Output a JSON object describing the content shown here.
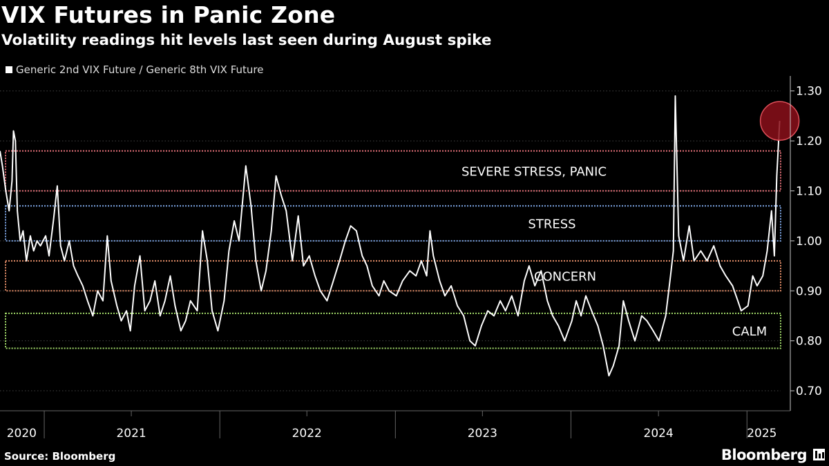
{
  "header": {
    "title": "VIX Futures in Panic Zone",
    "subtitle": "Volatility readings hit levels last seen during August spike",
    "legend_label": "Generic 2nd VIX Future / Generic 8th VIX Future"
  },
  "footer": {
    "source": "Source: Bloomberg",
    "brand": "Bloomberg"
  },
  "chart_data": {
    "type": "line",
    "ylim": [
      0.66,
      1.33
    ],
    "yticks": [
      0.7,
      0.8,
      0.9,
      1.0,
      1.1,
      1.2,
      1.3
    ],
    "ytick_labels": [
      "0.70",
      "0.80",
      "0.90",
      "1.00",
      "1.10",
      "1.20",
      "1.30"
    ],
    "x_start": "2020-10-01",
    "x_end": "2025-03-12",
    "year_labels": [
      {
        "label": "2020",
        "date": "2020-11-15"
      },
      {
        "label": "2021",
        "date": "2021-07-01"
      },
      {
        "label": "2022",
        "date": "2022-07-01"
      },
      {
        "label": "2023",
        "date": "2023-07-01"
      },
      {
        "label": "2024",
        "date": "2024-07-01"
      },
      {
        "label": "2025",
        "date": "2025-02-01"
      }
    ],
    "colors": {
      "line": "#ffffff",
      "grid": "#444444",
      "highlight": "#8b0f1a",
      "highlight_stroke": "#e0505a"
    },
    "zones": [
      {
        "label": "SEVERE STRESS, PANIC",
        "y0": 1.1,
        "y1": 1.18,
        "color": "#e8727a"
      },
      {
        "label": "STRESS",
        "y0": 1.0,
        "y1": 1.07,
        "color": "#7fa8e8"
      },
      {
        "label": "CONCERN",
        "y0": 0.9,
        "y1": 0.96,
        "color": "#e8906a"
      },
      {
        "label": "CALM",
        "y0": 0.785,
        "y1": 0.855,
        "color": "#a3dc6a"
      }
    ],
    "highlight_point": {
      "date": "2025-03-10",
      "y": 1.24
    },
    "series": [
      {
        "values": [
          [
            "2020-10-01",
            1.18
          ],
          [
            "2020-10-06",
            1.15
          ],
          [
            "2020-10-13",
            1.1
          ],
          [
            "2020-10-20",
            1.06
          ],
          [
            "2020-10-26",
            1.12
          ],
          [
            "2020-10-29",
            1.22
          ],
          [
            "2020-11-02",
            1.2
          ],
          [
            "2020-11-06",
            1.06
          ],
          [
            "2020-11-12",
            1.0
          ],
          [
            "2020-11-18",
            1.02
          ],
          [
            "2020-11-25",
            0.96
          ],
          [
            "2020-12-03",
            1.01
          ],
          [
            "2020-12-10",
            0.98
          ],
          [
            "2020-12-17",
            1.0
          ],
          [
            "2020-12-24",
            0.99
          ],
          [
            "2021-01-04",
            1.01
          ],
          [
            "2021-01-11",
            0.97
          ],
          [
            "2021-01-20",
            1.04
          ],
          [
            "2021-01-28",
            1.11
          ],
          [
            "2021-02-04",
            0.99
          ],
          [
            "2021-02-12",
            0.96
          ],
          [
            "2021-02-22",
            1.0
          ],
          [
            "2021-03-03",
            0.95
          ],
          [
            "2021-03-12",
            0.93
          ],
          [
            "2021-03-22",
            0.91
          ],
          [
            "2021-04-01",
            0.88
          ],
          [
            "2021-04-12",
            0.85
          ],
          [
            "2021-04-22",
            0.9
          ],
          [
            "2021-05-03",
            0.88
          ],
          [
            "2021-05-12",
            1.01
          ],
          [
            "2021-05-20",
            0.92
          ],
          [
            "2021-06-01",
            0.87
          ],
          [
            "2021-06-10",
            0.84
          ],
          [
            "2021-06-21",
            0.86
          ],
          [
            "2021-06-29",
            0.82
          ],
          [
            "2021-07-08",
            0.91
          ],
          [
            "2021-07-19",
            0.97
          ],
          [
            "2021-07-29",
            0.86
          ],
          [
            "2021-08-09",
            0.88
          ],
          [
            "2021-08-19",
            0.92
          ],
          [
            "2021-08-30",
            0.85
          ],
          [
            "2021-09-09",
            0.88
          ],
          [
            "2021-09-20",
            0.93
          ],
          [
            "2021-09-30",
            0.87
          ],
          [
            "2021-10-12",
            0.82
          ],
          [
            "2021-10-22",
            0.84
          ],
          [
            "2021-11-01",
            0.88
          ],
          [
            "2021-11-15",
            0.86
          ],
          [
            "2021-11-26",
            1.02
          ],
          [
            "2021-12-06",
            0.96
          ],
          [
            "2021-12-16",
            0.86
          ],
          [
            "2021-12-28",
            0.82
          ],
          [
            "2022-01-10",
            0.88
          ],
          [
            "2022-01-20",
            0.98
          ],
          [
            "2022-01-31",
            1.04
          ],
          [
            "2022-02-10",
            1.0
          ],
          [
            "2022-02-24",
            1.15
          ],
          [
            "2022-03-07",
            1.07
          ],
          [
            "2022-03-17",
            0.96
          ],
          [
            "2022-03-28",
            0.9
          ],
          [
            "2022-04-07",
            0.94
          ],
          [
            "2022-04-18",
            1.02
          ],
          [
            "2022-04-28",
            1.13
          ],
          [
            "2022-05-09",
            1.09
          ],
          [
            "2022-05-19",
            1.06
          ],
          [
            "2022-06-01",
            0.96
          ],
          [
            "2022-06-13",
            1.05
          ],
          [
            "2022-06-24",
            0.95
          ],
          [
            "2022-07-06",
            0.97
          ],
          [
            "2022-07-18",
            0.93
          ],
          [
            "2022-07-29",
            0.9
          ],
          [
            "2022-08-12",
            0.88
          ],
          [
            "2022-08-25",
            0.92
          ],
          [
            "2022-09-07",
            0.96
          ],
          [
            "2022-09-19",
            1.0
          ],
          [
            "2022-09-30",
            1.03
          ],
          [
            "2022-10-12",
            1.02
          ],
          [
            "2022-10-24",
            0.97
          ],
          [
            "2022-11-03",
            0.95
          ],
          [
            "2022-11-14",
            0.91
          ],
          [
            "2022-11-28",
            0.89
          ],
          [
            "2022-12-08",
            0.92
          ],
          [
            "2022-12-19",
            0.9
          ],
          [
            "2023-01-03",
            0.89
          ],
          [
            "2023-01-16",
            0.92
          ],
          [
            "2023-01-31",
            0.94
          ],
          [
            "2023-02-13",
            0.93
          ],
          [
            "2023-02-24",
            0.96
          ],
          [
            "2023-03-07",
            0.93
          ],
          [
            "2023-03-14",
            1.02
          ],
          [
            "2023-03-21",
            0.97
          ],
          [
            "2023-04-03",
            0.92
          ],
          [
            "2023-04-14",
            0.89
          ],
          [
            "2023-04-27",
            0.91
          ],
          [
            "2023-05-10",
            0.87
          ],
          [
            "2023-05-23",
            0.85
          ],
          [
            "2023-06-05",
            0.8
          ],
          [
            "2023-06-16",
            0.79
          ],
          [
            "2023-06-29",
            0.83
          ],
          [
            "2023-07-12",
            0.86
          ],
          [
            "2023-07-25",
            0.85
          ],
          [
            "2023-08-07",
            0.88
          ],
          [
            "2023-08-18",
            0.86
          ],
          [
            "2023-08-31",
            0.89
          ],
          [
            "2023-09-13",
            0.85
          ],
          [
            "2023-09-26",
            0.92
          ],
          [
            "2023-10-06",
            0.95
          ],
          [
            "2023-10-18",
            0.91
          ],
          [
            "2023-10-31",
            0.94
          ],
          [
            "2023-11-13",
            0.88
          ],
          [
            "2023-11-24",
            0.85
          ],
          [
            "2023-12-06",
            0.83
          ],
          [
            "2023-12-19",
            0.8
          ],
          [
            "2024-01-03",
            0.84
          ],
          [
            "2024-01-12",
            0.88
          ],
          [
            "2024-01-22",
            0.85
          ],
          [
            "2024-02-01",
            0.89
          ],
          [
            "2024-02-13",
            0.86
          ],
          [
            "2024-02-26",
            0.83
          ],
          [
            "2024-03-08",
            0.79
          ],
          [
            "2024-03-20",
            0.73
          ],
          [
            "2024-03-29",
            0.75
          ],
          [
            "2024-04-10",
            0.79
          ],
          [
            "2024-04-19",
            0.88
          ],
          [
            "2024-04-30",
            0.84
          ],
          [
            "2024-05-13",
            0.8
          ],
          [
            "2024-05-27",
            0.85
          ],
          [
            "2024-06-07",
            0.84
          ],
          [
            "2024-06-20",
            0.82
          ],
          [
            "2024-07-02",
            0.8
          ],
          [
            "2024-07-16",
            0.85
          ],
          [
            "2024-07-26",
            0.93
          ],
          [
            "2024-08-01",
            0.98
          ],
          [
            "2024-08-05",
            1.29
          ],
          [
            "2024-08-12",
            1.01
          ],
          [
            "2024-08-22",
            0.96
          ],
          [
            "2024-09-03",
            1.03
          ],
          [
            "2024-09-13",
            0.96
          ],
          [
            "2024-09-27",
            0.98
          ],
          [
            "2024-10-10",
            0.96
          ],
          [
            "2024-10-24",
            0.99
          ],
          [
            "2024-11-06",
            0.95
          ],
          [
            "2024-11-18",
            0.93
          ],
          [
            "2024-12-02",
            0.91
          ],
          [
            "2024-12-13",
            0.88
          ],
          [
            "2024-12-20",
            0.86
          ],
          [
            "2025-01-03",
            0.87
          ],
          [
            "2025-01-13",
            0.93
          ],
          [
            "2025-01-22",
            0.91
          ],
          [
            "2025-02-03",
            0.93
          ],
          [
            "2025-02-12",
            0.98
          ],
          [
            "2025-02-21",
            1.06
          ],
          [
            "2025-02-27",
            0.97
          ],
          [
            "2025-03-04",
            1.13
          ],
          [
            "2025-03-10",
            1.24
          ]
        ]
      }
    ]
  }
}
